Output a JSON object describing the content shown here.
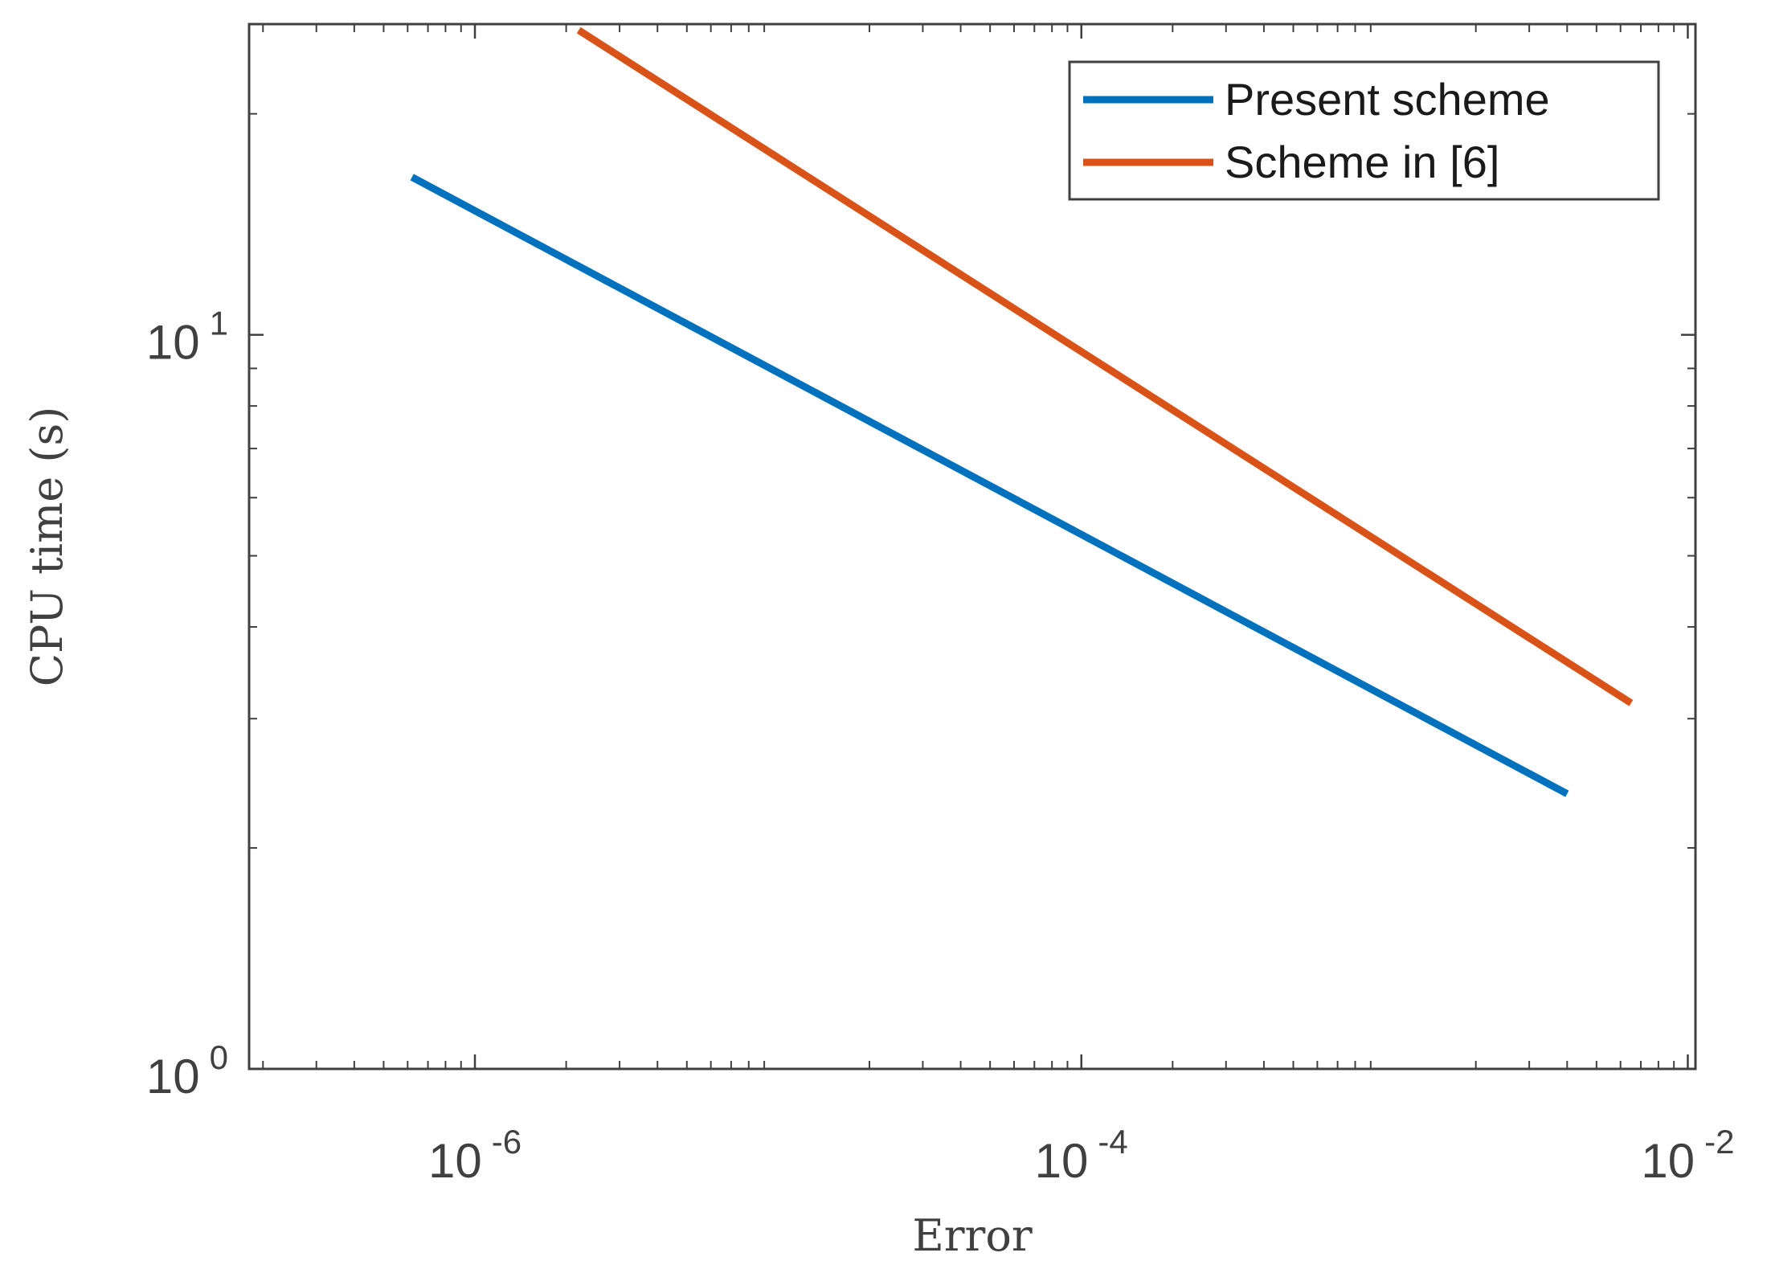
{
  "chart_data": {
    "type": "line",
    "xlabel": "Error",
    "ylabel": "CPU time (s)",
    "xscale": "log",
    "yscale": "log",
    "xlim": [
      1.8e-07,
      0.0106
    ],
    "ylim": [
      1,
      26.5
    ],
    "xticks": [
      {
        "value": 1e-06,
        "base": "10",
        "exp": "-6"
      },
      {
        "value": 0.0001,
        "base": "10",
        "exp": "-4"
      },
      {
        "value": 0.01,
        "base": "10",
        "exp": "-2"
      }
    ],
    "yticks": [
      {
        "value": 1,
        "base": "10",
        "exp": "0"
      },
      {
        "value": 10,
        "base": "10",
        "exp": "1"
      }
    ],
    "grid": false,
    "legend_position": "top-right",
    "series": [
      {
        "name": "Present scheme",
        "color": "#0072BD",
        "x": [
          6.2e-07,
          0.004
        ],
        "y": [
          16.4,
          2.37
        ]
      },
      {
        "name": "Scheme in [6]",
        "color": "#D95319",
        "x": [
          2.2e-06,
          0.0065
        ],
        "y": [
          26.0,
          3.15
        ]
      }
    ]
  }
}
